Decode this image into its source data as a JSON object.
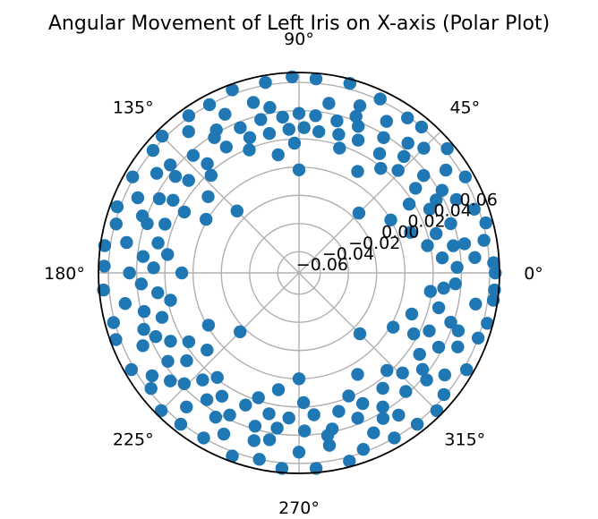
{
  "chart_data": {
    "type": "scatter",
    "projection": "polar",
    "title": "Angular Movement of Left Iris on X-axis (Polar Plot)",
    "theta_ticks": [
      {
        "deg": 0,
        "label": "0°"
      },
      {
        "deg": 45,
        "label": "45°"
      },
      {
        "deg": 90,
        "label": "90°"
      },
      {
        "deg": 135,
        "label": "135°"
      },
      {
        "deg": 180,
        "label": "180°"
      },
      {
        "deg": 225,
        "label": "225°"
      },
      {
        "deg": 270,
        "label": "270°"
      },
      {
        "deg": 315,
        "label": "315°"
      }
    ],
    "r_ticks": [
      {
        "value": -0.06,
        "label": "−0.06"
      },
      {
        "value": -0.04,
        "label": "−0.04"
      },
      {
        "value": -0.02,
        "label": "−0.02"
      },
      {
        "value": 0.0,
        "label": "0.00"
      },
      {
        "value": 0.02,
        "label": "0.02"
      },
      {
        "value": 0.04,
        "label": "0.04"
      },
      {
        "value": 0.06,
        "label": "0.06"
      }
    ],
    "rlim": [
      -0.075,
      0.067
    ],
    "r_label_angle_deg": 22.5,
    "grid": true,
    "marker_color": "#1f77b4",
    "points": [
      [
        0,
        0.064
      ],
      [
        3,
        0.063
      ],
      [
        -5,
        0.064
      ],
      [
        10,
        0.058
      ],
      [
        15,
        0.062
      ],
      [
        20,
        0.057
      ],
      [
        30,
        0.061
      ],
      [
        40,
        0.062
      ],
      [
        50,
        0.06
      ],
      [
        55,
        0.059
      ],
      [
        65,
        0.061
      ],
      [
        75,
        0.064
      ],
      [
        85,
        0.063
      ],
      [
        92,
        0.064
      ],
      [
        100,
        0.062
      ],
      [
        110,
        0.063
      ],
      [
        118,
        0.06
      ],
      [
        125,
        0.061
      ],
      [
        135,
        0.062
      ],
      [
        140,
        0.06
      ],
      [
        150,
        0.061
      ],
      [
        160,
        0.062
      ],
      [
        165,
        0.059
      ],
      [
        172,
        0.064
      ],
      [
        178,
        0.063
      ],
      [
        185,
        0.064
      ],
      [
        195,
        0.061
      ],
      [
        200,
        0.063
      ],
      [
        210,
        0.062
      ],
      [
        218,
        0.058
      ],
      [
        225,
        0.063
      ],
      [
        232,
        0.061
      ],
      [
        240,
        0.06
      ],
      [
        250,
        0.063
      ],
      [
        258,
        0.06
      ],
      [
        265,
        0.064
      ],
      [
        275,
        0.064
      ],
      [
        285,
        0.063
      ],
      [
        290,
        0.058
      ],
      [
        300,
        0.06
      ],
      [
        308,
        0.061
      ],
      [
        315,
        0.063
      ],
      [
        320,
        0.059
      ],
      [
        330,
        0.062
      ],
      [
        340,
        0.06
      ],
      [
        345,
        0.063
      ],
      [
        352,
        0.064
      ],
      [
        5,
        0.05
      ],
      [
        25,
        0.048
      ],
      [
        35,
        0.052
      ],
      [
        45,
        0.05
      ],
      [
        60,
        0.049
      ],
      [
        70,
        0.051
      ],
      [
        80,
        0.047
      ],
      [
        105,
        0.05
      ],
      [
        115,
        0.049
      ],
      [
        128,
        0.052
      ],
      [
        145,
        0.048
      ],
      [
        155,
        0.051
      ],
      [
        170,
        0.049
      ],
      [
        190,
        0.05
      ],
      [
        205,
        0.047
      ],
      [
        215,
        0.052
      ],
      [
        230,
        0.049
      ],
      [
        245,
        0.051
      ],
      [
        255,
        0.048
      ],
      [
        270,
        0.052
      ],
      [
        280,
        0.049
      ],
      [
        295,
        0.05
      ],
      [
        305,
        0.048
      ],
      [
        325,
        0.051
      ],
      [
        335,
        0.049
      ],
      [
        350,
        0.052
      ],
      [
        2,
        0.037
      ],
      [
        10,
        0.036
      ],
      [
        18,
        0.038
      ],
      [
        28,
        0.035
      ],
      [
        38,
        0.037
      ],
      [
        48,
        0.036
      ],
      [
        58,
        0.038
      ],
      [
        68,
        0.037
      ],
      [
        76,
        0.036
      ],
      [
        84,
        0.037
      ],
      [
        90,
        0.038
      ],
      [
        96,
        0.036
      ],
      [
        104,
        0.037
      ],
      [
        112,
        0.036
      ],
      [
        122,
        0.038
      ],
      [
        132,
        0.037
      ],
      [
        142,
        0.036
      ],
      [
        152,
        0.037
      ],
      [
        162,
        0.038
      ],
      [
        174,
        0.036
      ],
      [
        184,
        0.037
      ],
      [
        194,
        0.038
      ],
      [
        204,
        0.036
      ],
      [
        214,
        0.037
      ],
      [
        224,
        0.038
      ],
      [
        234,
        0.036
      ],
      [
        244,
        0.037
      ],
      [
        254,
        0.038
      ],
      [
        262,
        0.036
      ],
      [
        272,
        0.037
      ],
      [
        282,
        0.038
      ],
      [
        292,
        0.036
      ],
      [
        302,
        0.037
      ],
      [
        312,
        0.038
      ],
      [
        322,
        0.036
      ],
      [
        332,
        0.037
      ],
      [
        342,
        0.038
      ],
      [
        356,
        0.036
      ],
      [
        6,
        0.027
      ],
      [
        16,
        0.026
      ],
      [
        26,
        0.028
      ],
      [
        36,
        0.027
      ],
      [
        46,
        0.026
      ],
      [
        56,
        0.027
      ],
      [
        66,
        0.028
      ],
      [
        74,
        0.027
      ],
      [
        82,
        0.026
      ],
      [
        88,
        0.028
      ],
      [
        94,
        0.027
      ],
      [
        102,
        0.026
      ],
      [
        110,
        0.027
      ],
      [
        120,
        0.028
      ],
      [
        130,
        0.026
      ],
      [
        140,
        0.027
      ],
      [
        150,
        0.028
      ],
      [
        160,
        0.026
      ],
      [
        168,
        0.027
      ],
      [
        178,
        0.028
      ],
      [
        188,
        0.026
      ],
      [
        198,
        0.027
      ],
      [
        208,
        0.028
      ],
      [
        218,
        0.026
      ],
      [
        228,
        0.027
      ],
      [
        238,
        0.028
      ],
      [
        248,
        0.026
      ],
      [
        258,
        0.027
      ],
      [
        266,
        0.028
      ],
      [
        276,
        0.026
      ],
      [
        286,
        0.027
      ],
      [
        296,
        0.028
      ],
      [
        306,
        0.026
      ],
      [
        316,
        0.027
      ],
      [
        326,
        0.028
      ],
      [
        336,
        0.026
      ],
      [
        346,
        0.027
      ],
      [
        354,
        0.028
      ],
      [
        12,
        0.018
      ],
      [
        32,
        0.017
      ],
      [
        52,
        0.019
      ],
      [
        72,
        0.018
      ],
      [
        92,
        0.017
      ],
      [
        112,
        0.019
      ],
      [
        132,
        0.018
      ],
      [
        152,
        0.017
      ],
      [
        172,
        0.019
      ],
      [
        192,
        0.018
      ],
      [
        212,
        0.017
      ],
      [
        232,
        0.019
      ],
      [
        252,
        0.018
      ],
      [
        272,
        0.017
      ],
      [
        292,
        0.019
      ],
      [
        312,
        0.018
      ],
      [
        332,
        0.017
      ],
      [
        352,
        0.019
      ],
      [
        20,
        0.009
      ],
      [
        60,
        0.008
      ],
      [
        100,
        0.01
      ],
      [
        140,
        0.009
      ],
      [
        180,
        0.008
      ],
      [
        220,
        0.01
      ],
      [
        260,
        0.009
      ],
      [
        300,
        0.008
      ],
      [
        340,
        0.01
      ],
      [
        30,
        0.0
      ],
      [
        90,
        -0.002
      ],
      [
        150,
        0.001
      ],
      [
        210,
        -0.001
      ],
      [
        270,
        0.0
      ],
      [
        330,
        0.002
      ],
      [
        45,
        -0.015
      ],
      [
        135,
        -0.013
      ],
      [
        225,
        -0.016
      ],
      [
        315,
        -0.014
      ],
      [
        10,
        0.044
      ],
      [
        30,
        0.042
      ],
      [
        50,
        0.045
      ],
      [
        70,
        0.043
      ],
      [
        100,
        0.044
      ],
      [
        120,
        0.042
      ],
      [
        140,
        0.044
      ],
      [
        160,
        0.043
      ],
      [
        180,
        0.045
      ],
      [
        200,
        0.042
      ],
      [
        220,
        0.044
      ],
      [
        240,
        0.043
      ],
      [
        260,
        0.045
      ],
      [
        280,
        0.042
      ],
      [
        300,
        0.044
      ],
      [
        320,
        0.043
      ],
      [
        340,
        0.045
      ]
    ]
  }
}
